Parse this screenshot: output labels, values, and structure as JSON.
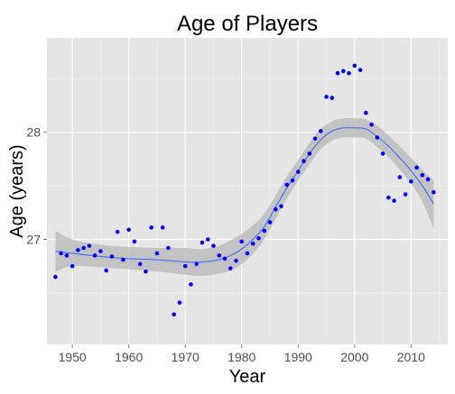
{
  "chart_data": {
    "type": "scatter",
    "title": "Age of Players",
    "xlabel": "Year",
    "ylabel": "Age (years)",
    "xlim": [
      1945.5,
      2016.5
    ],
    "ylim": [
      26.02,
      28.88
    ],
    "x_ticks": [
      1950,
      1960,
      1970,
      1980,
      1990,
      2000,
      2010
    ],
    "x_tick_labels": [
      "1950",
      "1960",
      "1970",
      "1980",
      "1990",
      "2000",
      "2010"
    ],
    "y_ticks": [
      27,
      28
    ],
    "y_tick_labels": [
      "27",
      "28"
    ],
    "grid": true,
    "legend": "none",
    "colors": {
      "panel_background": "#e5e5e5",
      "grid_major": "#ffffff",
      "grid_minor": "#f2f2f2",
      "points": "#0000ff",
      "smooth_line": "#3366ff",
      "confidence_band": "#bdbdbd",
      "text": "#000000",
      "tick_text": "#4d4d4d"
    },
    "points": {
      "x": [
        1947,
        1948,
        1949,
        1950,
        1951,
        1952,
        1953,
        1954,
        1955,
        1956,
        1957,
        1958,
        1959,
        1960,
        1961,
        1962,
        1963,
        1964,
        1965,
        1966,
        1967,
        1968,
        1969,
        1970,
        1971,
        1972,
        1973,
        1974,
        1975,
        1976,
        1977,
        1978,
        1979,
        1980,
        1981,
        1982,
        1983,
        1984,
        1985,
        1986,
        1987,
        1988,
        1989,
        1990,
        1991,
        1992,
        1993,
        1994,
        1995,
        1996,
        1997,
        1998,
        1999,
        2000,
        2001,
        2002,
        2003,
        2004,
        2005,
        2006,
        2007,
        2008,
        2009,
        2010,
        2011,
        2012,
        2013,
        2014
      ],
      "y": [
        26.65,
        26.87,
        26.85,
        26.75,
        26.9,
        26.92,
        26.94,
        26.85,
        26.89,
        26.71,
        26.84,
        27.07,
        26.81,
        27.09,
        26.98,
        26.77,
        26.7,
        27.11,
        26.87,
        27.11,
        26.92,
        26.3,
        26.41,
        26.75,
        26.58,
        26.77,
        26.97,
        27.0,
        26.94,
        26.85,
        26.82,
        26.73,
        26.8,
        26.98,
        26.87,
        26.96,
        27.01,
        27.08,
        27.16,
        27.28,
        27.31,
        27.51,
        27.55,
        27.63,
        27.73,
        27.8,
        27.94,
        28.01,
        28.33,
        28.32,
        28.55,
        28.57,
        28.55,
        28.62,
        28.58,
        28.18,
        28.07,
        27.95,
        27.8,
        27.39,
        27.36,
        27.58,
        27.42,
        27.54,
        27.67,
        27.6,
        27.56,
        27.44
      ]
    },
    "smooth": {
      "x": [
        1947,
        1950,
        1955,
        1960,
        1965,
        1970,
        1973,
        1976,
        1978,
        1980,
        1982,
        1984,
        1986,
        1988,
        1990,
        1992,
        1994,
        1996,
        1998,
        2000,
        2002,
        2004,
        2006,
        2008,
        2010,
        2012,
        2014
      ],
      "y": [
        26.89,
        26.87,
        26.84,
        26.82,
        26.81,
        26.79,
        26.79,
        26.81,
        26.85,
        26.91,
        27.0,
        27.12,
        27.3,
        27.48,
        27.64,
        27.8,
        27.93,
        28.01,
        28.04,
        28.04,
        28.03,
        27.96,
        27.87,
        27.76,
        27.64,
        27.5,
        27.33
      ],
      "band_upper": [
        27.08,
        27.0,
        26.95,
        26.93,
        26.92,
        26.92,
        26.91,
        26.94,
        26.99,
        27.05,
        27.13,
        27.24,
        27.41,
        27.59,
        27.74,
        27.9,
        28.03,
        28.1,
        28.13,
        28.13,
        28.12,
        28.06,
        27.97,
        27.87,
        27.76,
        27.65,
        27.55
      ],
      "band_lower": [
        26.7,
        26.75,
        26.74,
        26.72,
        26.7,
        26.67,
        26.66,
        26.68,
        26.71,
        26.77,
        26.87,
        27.0,
        27.19,
        27.38,
        27.55,
        27.7,
        27.84,
        27.92,
        27.95,
        27.95,
        27.94,
        27.86,
        27.77,
        27.65,
        27.52,
        27.35,
        27.1
      ]
    }
  }
}
